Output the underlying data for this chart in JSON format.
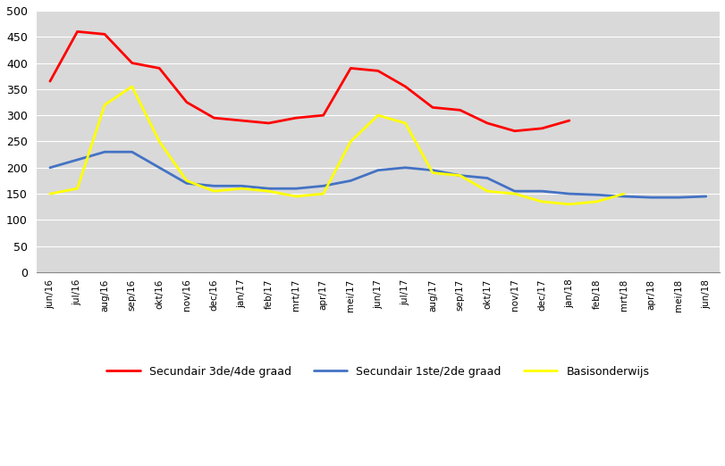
{
  "x_labels": [
    "jun/16",
    "jul/16",
    "aug/16",
    "sep/16",
    "okt/16",
    "nov/16",
    "dec/16",
    "jan/17",
    "feb/17",
    "mrt/17",
    "apr/17",
    "mei/17",
    "jun/17",
    "jul/17",
    "aug/17",
    "sep/17",
    "okt/17",
    "nov/17",
    "dec/17",
    "jan/18",
    "feb/18",
    "mrt/18",
    "apr/18",
    "mei/18",
    "jun/18"
  ],
  "sec34": [
    365,
    460,
    455,
    400,
    390,
    325,
    295,
    290,
    285,
    295,
    300,
    390,
    385,
    355,
    315,
    310,
    285,
    270,
    275,
    290,
    null,
    null,
    null,
    null,
    null
  ],
  "sec12": [
    200,
    215,
    230,
    230,
    200,
    170,
    165,
    165,
    160,
    160,
    165,
    175,
    195,
    200,
    195,
    185,
    180,
    155,
    155,
    150,
    148,
    145,
    143,
    143,
    145
  ],
  "basis": [
    150,
    160,
    320,
    355,
    250,
    175,
    155,
    160,
    155,
    145,
    150,
    250,
    300,
    285,
    190,
    185,
    155,
    150,
    135,
    130,
    135,
    150,
    null,
    null,
    null
  ],
  "color_sec34": "#FF0000",
  "color_sec12": "#4472C4",
  "color_basis": "#FFFF00",
  "legend_sec34": "Secundair 3de/4de graad",
  "legend_sec12": "Secundair 1ste/2de graad",
  "legend_basis": "Basisonderwijs",
  "ylim": [
    0,
    500
  ],
  "yticks": [
    0,
    50,
    100,
    150,
    200,
    250,
    300,
    350,
    400,
    450,
    500
  ],
  "bg_color": "#D9D9D9",
  "grid_color": "#FFFFFF",
  "fig_bg": "#FFFFFF",
  "line_width": 2.0
}
